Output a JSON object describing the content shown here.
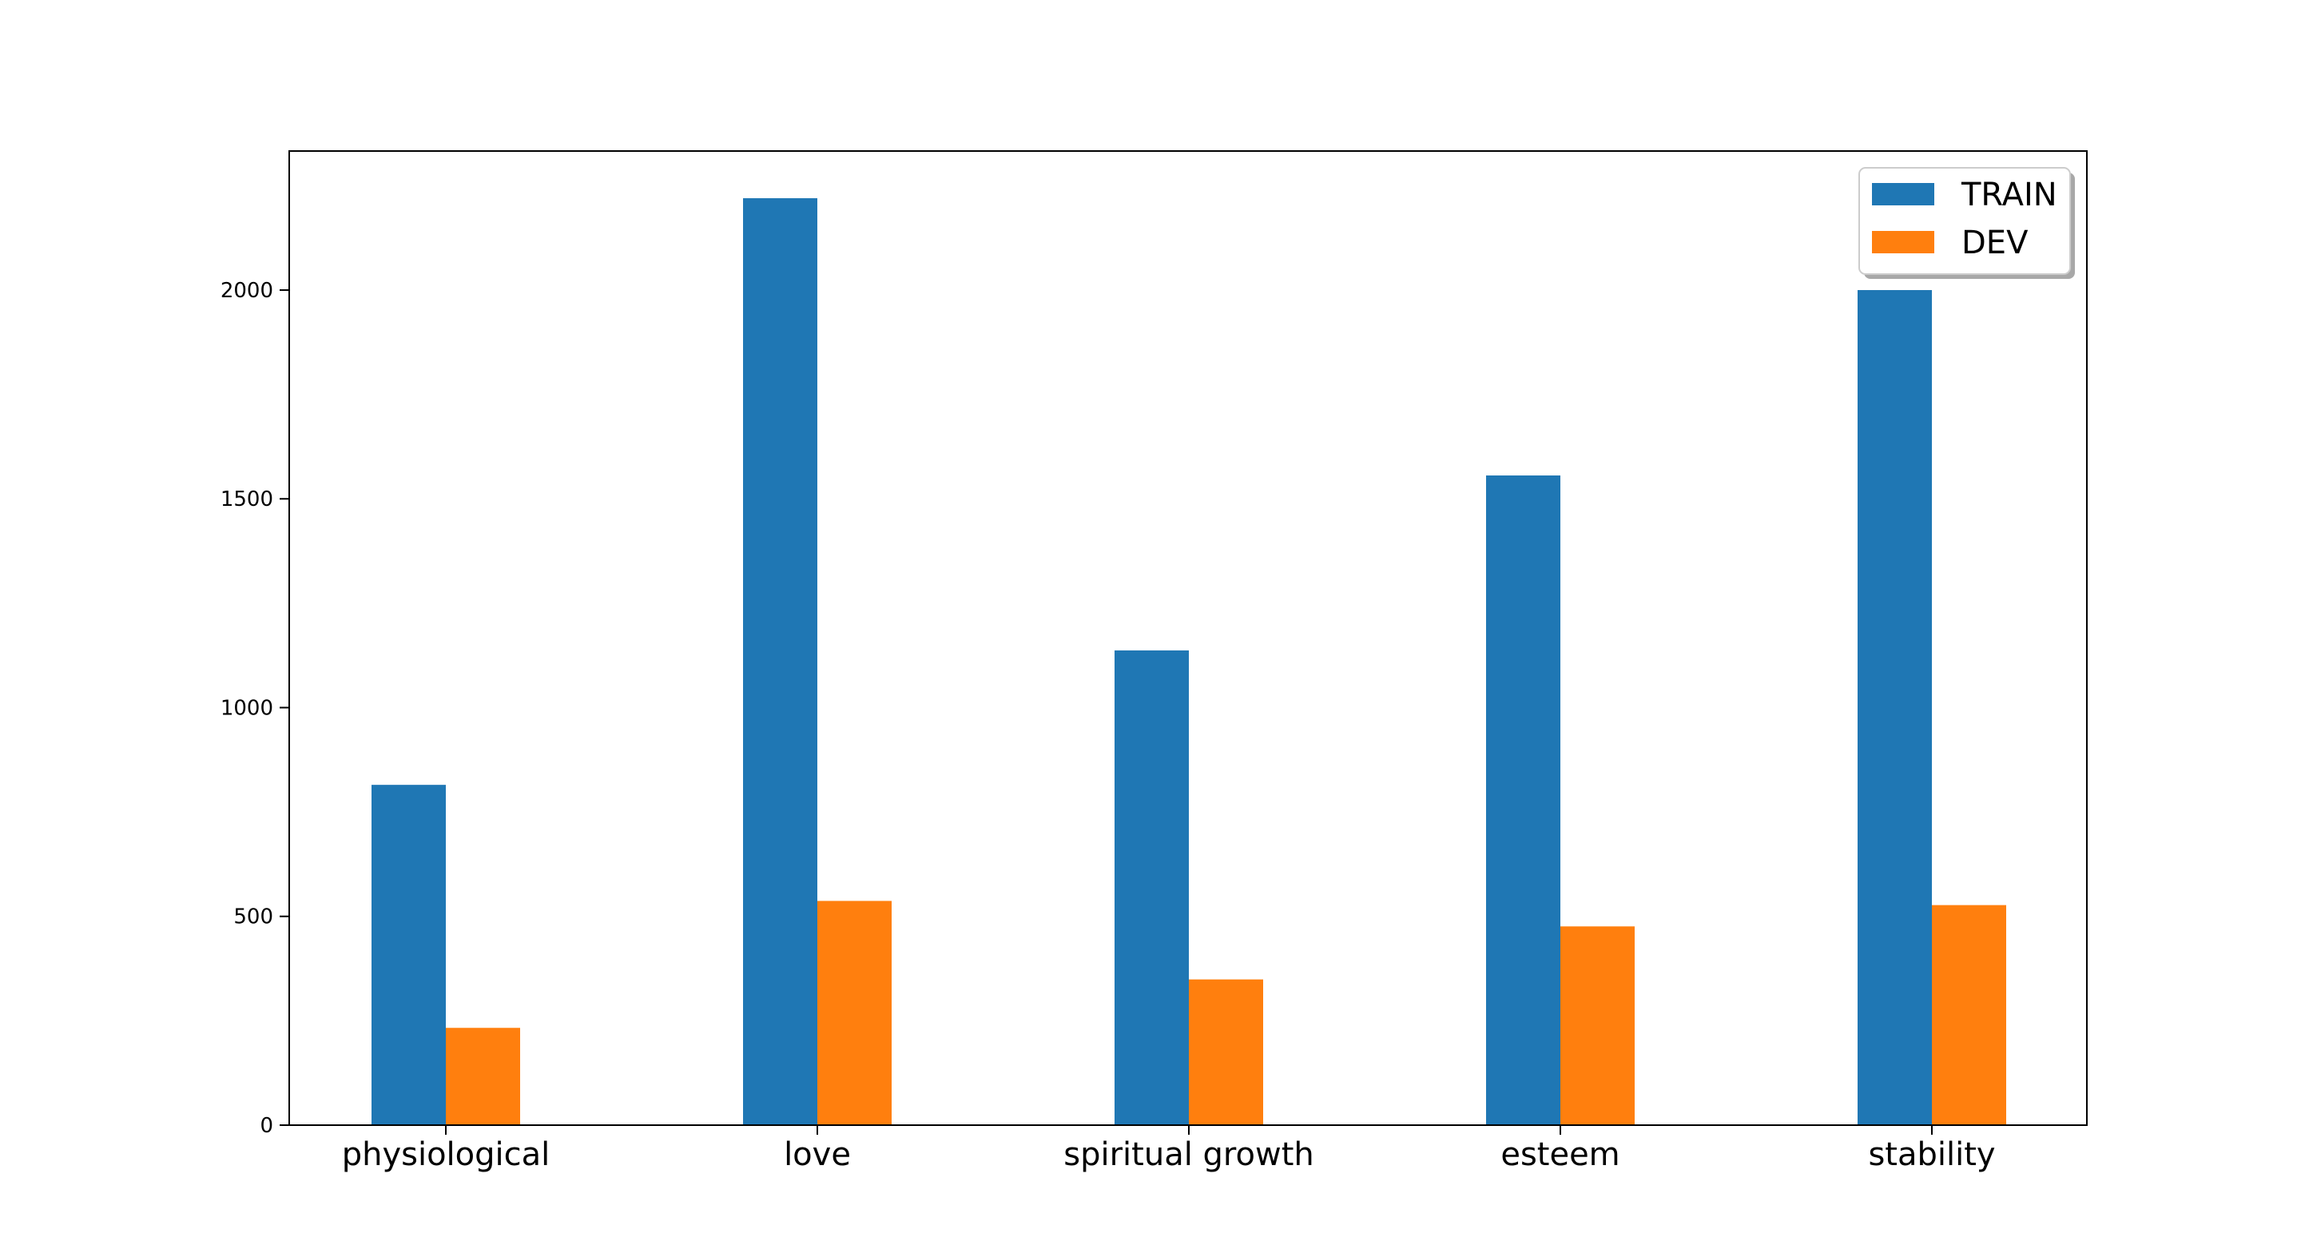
{
  "chart_data": {
    "type": "bar",
    "categories": [
      "physiological",
      "love",
      "spiritual growth",
      "esteem",
      "stability"
    ],
    "series": [
      {
        "name": "TRAIN",
        "color": "#1f77b4",
        "values": [
          815,
          2220,
          1137,
          1556,
          2000
        ]
      },
      {
        "name": "DEV",
        "color": "#ff7f0e",
        "values": [
          233,
          537,
          349,
          476,
          527
        ]
      }
    ],
    "title": "",
    "xlabel": "",
    "ylabel": "",
    "ylim": [
      0,
      2333
    ],
    "yticks": [
      0,
      500,
      1000,
      1500,
      2000
    ],
    "grid": false,
    "legend_position": "top-right"
  }
}
